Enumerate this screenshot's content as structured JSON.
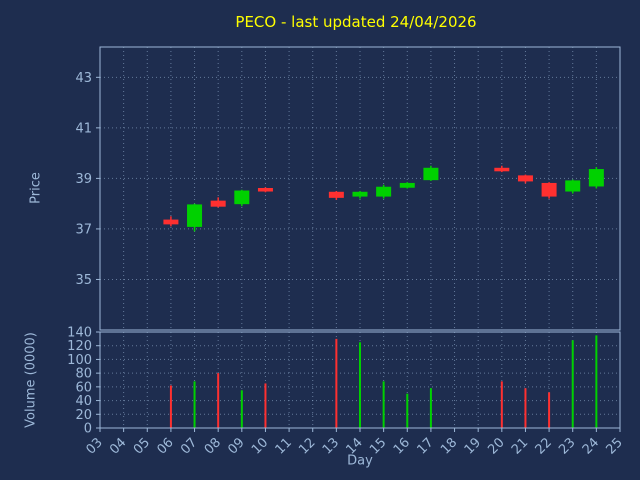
{
  "colors": {
    "background": "#1e2d4f",
    "title": "#ffff00",
    "axis_text": "#9db8d8",
    "grid": "#9db8d8",
    "spine": "#9db8d8",
    "up": "#00d100",
    "down": "#ff3030"
  },
  "chart_data": {
    "type": "candlestick+volume",
    "title": "PECO - last updated 24/04/2026",
    "xlabel": "Day",
    "ylabel_price": "Price",
    "ylabel_volume": "Volume (0000)",
    "x_tick_values": [
      3,
      4,
      5,
      6,
      7,
      8,
      9,
      10,
      11,
      12,
      13,
      14,
      15,
      16,
      17,
      18,
      19,
      20,
      21,
      22,
      23,
      24,
      25
    ],
    "x_tick_labels": [
      "03",
      "04",
      "05",
      "06",
      "07",
      "08",
      "09",
      "10",
      "11",
      "12",
      "13",
      "14",
      "15",
      "16",
      "17",
      "18",
      "19",
      "20",
      "21",
      "22",
      "23",
      "24",
      "25"
    ],
    "xlim": [
      3,
      25
    ],
    "price_ylim": [
      33.0,
      44.2
    ],
    "price_ticks": [
      35,
      37,
      39,
      41,
      43
    ],
    "price_tick_labels": [
      "35",
      "37",
      "39",
      "41",
      "43"
    ],
    "volume_ylim": [
      0,
      140
    ],
    "volume_ticks": [
      0,
      20,
      40,
      60,
      80,
      100,
      120,
      140
    ],
    "volume_tick_labels": [
      "0",
      "20",
      "40",
      "60",
      "80",
      "100",
      "120",
      "140"
    ],
    "grid": true,
    "candles": [
      {
        "day": 6,
        "open": 37.35,
        "high": 37.5,
        "low": 37.1,
        "close": 37.2,
        "volume": 62
      },
      {
        "day": 7,
        "open": 37.1,
        "high": 38.0,
        "low": 36.9,
        "close": 37.95,
        "volume": 68
      },
      {
        "day": 8,
        "open": 38.1,
        "high": 38.25,
        "low": 37.85,
        "close": 37.9,
        "volume": 80
      },
      {
        "day": 9,
        "open": 38.0,
        "high": 38.55,
        "low": 37.9,
        "close": 38.5,
        "volume": 55
      },
      {
        "day": 10,
        "open": 38.6,
        "high": 38.65,
        "low": 38.45,
        "close": 38.5,
        "volume": 65
      },
      {
        "day": 13,
        "open": 38.45,
        "high": 38.5,
        "low": 38.15,
        "close": 38.25,
        "volume": 130
      },
      {
        "day": 14,
        "open": 38.3,
        "high": 38.5,
        "low": 38.2,
        "close": 38.45,
        "volume": 125
      },
      {
        "day": 15,
        "open": 38.3,
        "high": 38.75,
        "low": 38.2,
        "close": 38.65,
        "volume": 68
      },
      {
        "day": 16,
        "open": 38.65,
        "high": 38.85,
        "low": 38.6,
        "close": 38.8,
        "volume": 50
      },
      {
        "day": 17,
        "open": 38.95,
        "high": 39.5,
        "low": 38.9,
        "close": 39.4,
        "volume": 58
      },
      {
        "day": 20,
        "open": 39.4,
        "high": 39.5,
        "low": 39.25,
        "close": 39.3,
        "volume": 68
      },
      {
        "day": 21,
        "open": 39.1,
        "high": 39.15,
        "low": 38.8,
        "close": 38.9,
        "volume": 58
      },
      {
        "day": 22,
        "open": 38.8,
        "high": 38.85,
        "low": 38.2,
        "close": 38.3,
        "volume": 52
      },
      {
        "day": 23,
        "open": 38.5,
        "high": 38.95,
        "low": 38.4,
        "close": 38.9,
        "volume": 128
      },
      {
        "day": 24,
        "open": 38.7,
        "high": 39.45,
        "low": 38.6,
        "close": 39.35,
        "volume": 135
      }
    ]
  }
}
